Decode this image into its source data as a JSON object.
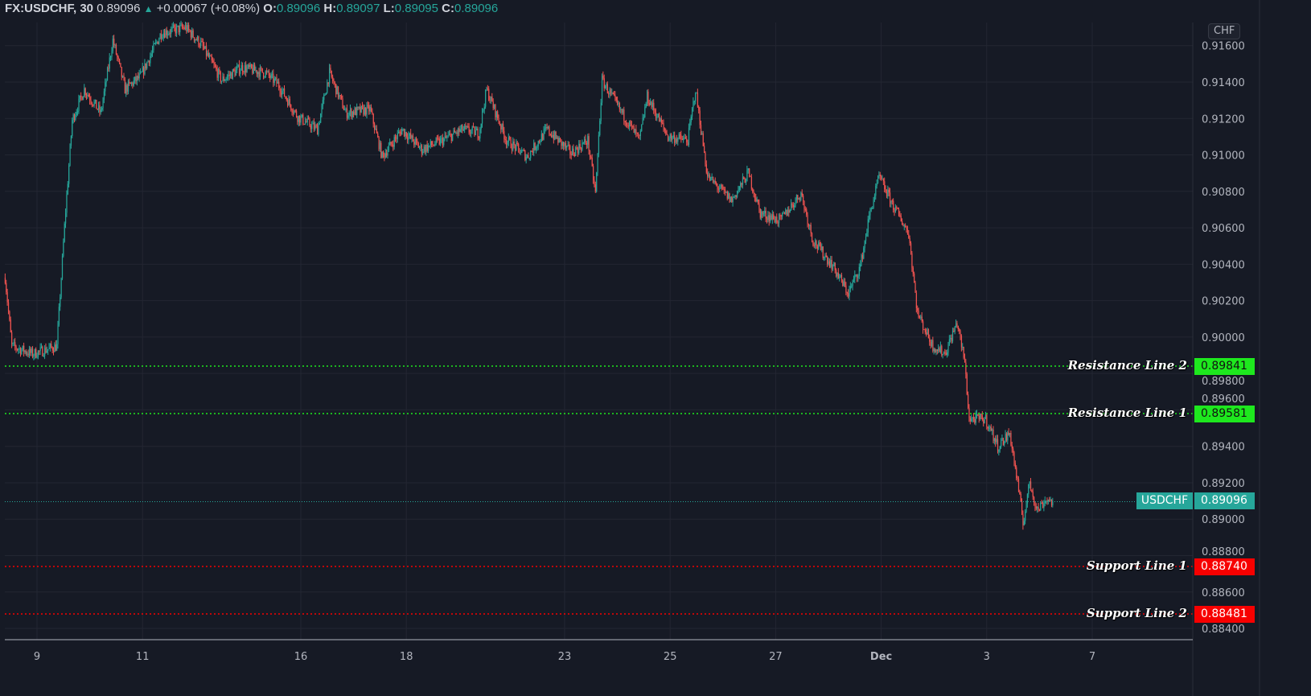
{
  "header": {
    "symbol": "FX:USDCHF, 30",
    "last": "0.89096",
    "change": "+0.00067 (+0.08%)",
    "o_label": "O:",
    "o": "0.89096",
    "h_label": "H:",
    "h": "0.89097",
    "l_label": "L:",
    "l": "0.89095",
    "c_label": "C:",
    "c": "0.89096"
  },
  "currency_button": "CHF",
  "colors": {
    "background": "#161a25",
    "grid": "#232632",
    "up": "#26a69a",
    "down": "#ef5350",
    "resistance": "#1ee81e",
    "support": "#f70000",
    "last_price": "#26a69a"
  },
  "chart_data": {
    "type": "candlestick",
    "interval": "30",
    "ylim": [
      0.8832,
      0.9172
    ],
    "grid": true,
    "y_ticks": [
      "0.88400",
      "0.88600",
      "0.88800",
      "0.89000",
      "0.89200",
      "0.89400",
      "0.89600",
      "0.89800",
      "0.90000",
      "0.90200",
      "0.90400",
      "0.90600",
      "0.90800",
      "0.91000",
      "0.91200",
      "0.91400",
      "0.91600"
    ],
    "x_ticks": [
      "9",
      "11",
      "16",
      "18",
      "23",
      "25",
      "27",
      "Dec",
      "3",
      "7"
    ],
    "price_path": [
      {
        "t": "Nov 8 09:30",
        "p": 0.90326
      },
      {
        "t": "Nov 8 12:30",
        "p": 0.89951
      },
      {
        "t": "Nov 8 22:00",
        "p": 0.89907
      },
      {
        "t": "Nov 9 09:00",
        "p": 0.8995
      },
      {
        "t": "Nov 9 12:30",
        "p": 0.9061
      },
      {
        "t": "Nov 9 16:00",
        "p": 0.9119
      },
      {
        "t": "Nov 9 21:30",
        "p": 0.9136
      },
      {
        "t": "Nov 10 05:00",
        "p": 0.9123
      },
      {
        "t": "Nov 10 10:30",
        "p": 0.9163
      },
      {
        "t": "Nov 10 16:00",
        "p": 0.9136
      },
      {
        "t": "Nov 10 23:00",
        "p": 0.9143
      },
      {
        "t": "Nov 11 08:30",
        "p": 0.9167
      },
      {
        "t": "Nov 11 19:30",
        "p": 0.917
      },
      {
        "t": "Nov 14 02:30",
        "p": 0.9161
      },
      {
        "t": "Nov 14 12:00",
        "p": 0.9141
      },
      {
        "t": "Nov 14 21:00",
        "p": 0.9148
      },
      {
        "t": "Nov 15 08:00",
        "p": 0.9145
      },
      {
        "t": "Nov 15 13:30",
        "p": 0.9139
      },
      {
        "t": "Nov 15 22:30",
        "p": 0.9121
      },
      {
        "t": "Nov 16 07:30",
        "p": 0.9114
      },
      {
        "t": "Nov 16 13:00",
        "p": 0.9145
      },
      {
        "t": "Nov 16 20:30",
        "p": 0.9123
      },
      {
        "t": "Nov 17 07:30",
        "p": 0.9125
      },
      {
        "t": "Nov 17 13:00",
        "p": 0.9099
      },
      {
        "t": "Nov 17 22:00",
        "p": 0.9114
      },
      {
        "t": "Nov 18 07:00",
        "p": 0.9103
      },
      {
        "t": "Nov 18 16:30",
        "p": 0.9108
      },
      {
        "t": "Nov 21 01:30",
        "p": 0.9114
      },
      {
        "t": "Nov 21 09:00",
        "p": 0.9112
      },
      {
        "t": "Nov 21 12:30",
        "p": 0.9136
      },
      {
        "t": "Nov 21 21:30",
        "p": 0.9108
      },
      {
        "t": "Nov 22 07:00",
        "p": 0.9099
      },
      {
        "t": "Nov 22 16:00",
        "p": 0.9114
      },
      {
        "t": "Nov 23 03:00",
        "p": 0.9101
      },
      {
        "t": "Nov 23 10:30",
        "p": 0.9108
      },
      {
        "t": "Nov 23 14:00",
        "p": 0.9079
      },
      {
        "t": "Nov 23 17:00",
        "p": 0.9141
      },
      {
        "t": "Nov 24 01:00",
        "p": 0.9125
      },
      {
        "t": "Nov 24 10:00",
        "p": 0.9108
      },
      {
        "t": "Nov 24 13:30",
        "p": 0.9132
      },
      {
        "t": "Nov 24 23:00",
        "p": 0.911
      },
      {
        "t": "Nov 25 08:00",
        "p": 0.9108
      },
      {
        "t": "Nov 25 11:30",
        "p": 0.9136
      },
      {
        "t": "Nov 25 17:00",
        "p": 0.9088
      },
      {
        "t": "Nov 28 04:00",
        "p": 0.9075
      },
      {
        "t": "Nov 28 11:30",
        "p": 0.909
      },
      {
        "t": "Nov 28 17:00",
        "p": 0.9068
      },
      {
        "t": "Nov 29 02:00",
        "p": 0.9064
      },
      {
        "t": "Nov 29 11:30",
        "p": 0.9079
      },
      {
        "t": "Nov 29 17:00",
        "p": 0.9053
      },
      {
        "t": "Nov 30 02:00",
        "p": 0.9039
      },
      {
        "t": "Nov 30 09:00",
        "p": 0.9024
      },
      {
        "t": "Nov 30 14:30",
        "p": 0.9039
      },
      {
        "t": "Nov 30 18:30",
        "p": 0.9066
      },
      {
        "t": "Nov 30 23:00",
        "p": 0.9088
      },
      {
        "t": "Dec 1 05:30",
        "p": 0.9072
      },
      {
        "t": "Dec 1 12:30",
        "p": 0.9057
      },
      {
        "t": "Dec 1 16:30",
        "p": 0.9013
      },
      {
        "t": "Dec 1 23:30",
        "p": 0.8995
      },
      {
        "t": "Dec 2 05:00",
        "p": 0.8991
      },
      {
        "t": "Dec 2 10:30",
        "p": 0.9008
      },
      {
        "t": "Dec 2 14:00",
        "p": 0.8986
      },
      {
        "t": "Dec 2 16:00",
        "p": 0.8955
      },
      {
        "t": "Dec 2 23:30",
        "p": 0.8955
      },
      {
        "t": "Dec 5 05:00",
        "p": 0.894
      },
      {
        "t": "Dec 5 10:30",
        "p": 0.8947
      },
      {
        "t": "Dec 5 14:00",
        "p": 0.892
      },
      {
        "t": "Dec 5 16:30",
        "p": 0.8898
      },
      {
        "t": "Dec 5 19:30",
        "p": 0.892
      },
      {
        "t": "Dec 5 23:00",
        "p": 0.8905
      },
      {
        "t": "Dec 6 03:00",
        "p": 0.8911
      },
      {
        "t": "Dec 6 06:00",
        "p": 0.89096
      }
    ],
    "last_price": {
      "symbol": "USDCHF",
      "value": "0.89096"
    },
    "horizontal_lines": [
      {
        "label": "Resistance Line 2",
        "value": "0.89841",
        "kind": "resistance"
      },
      {
        "label": "Resistance Line 1",
        "value": "0.89581",
        "kind": "resistance"
      },
      {
        "label": "Support Line 1",
        "value": "0.88740",
        "kind": "support"
      },
      {
        "label": "Support Line 2",
        "value": "0.88481",
        "kind": "support"
      }
    ]
  }
}
